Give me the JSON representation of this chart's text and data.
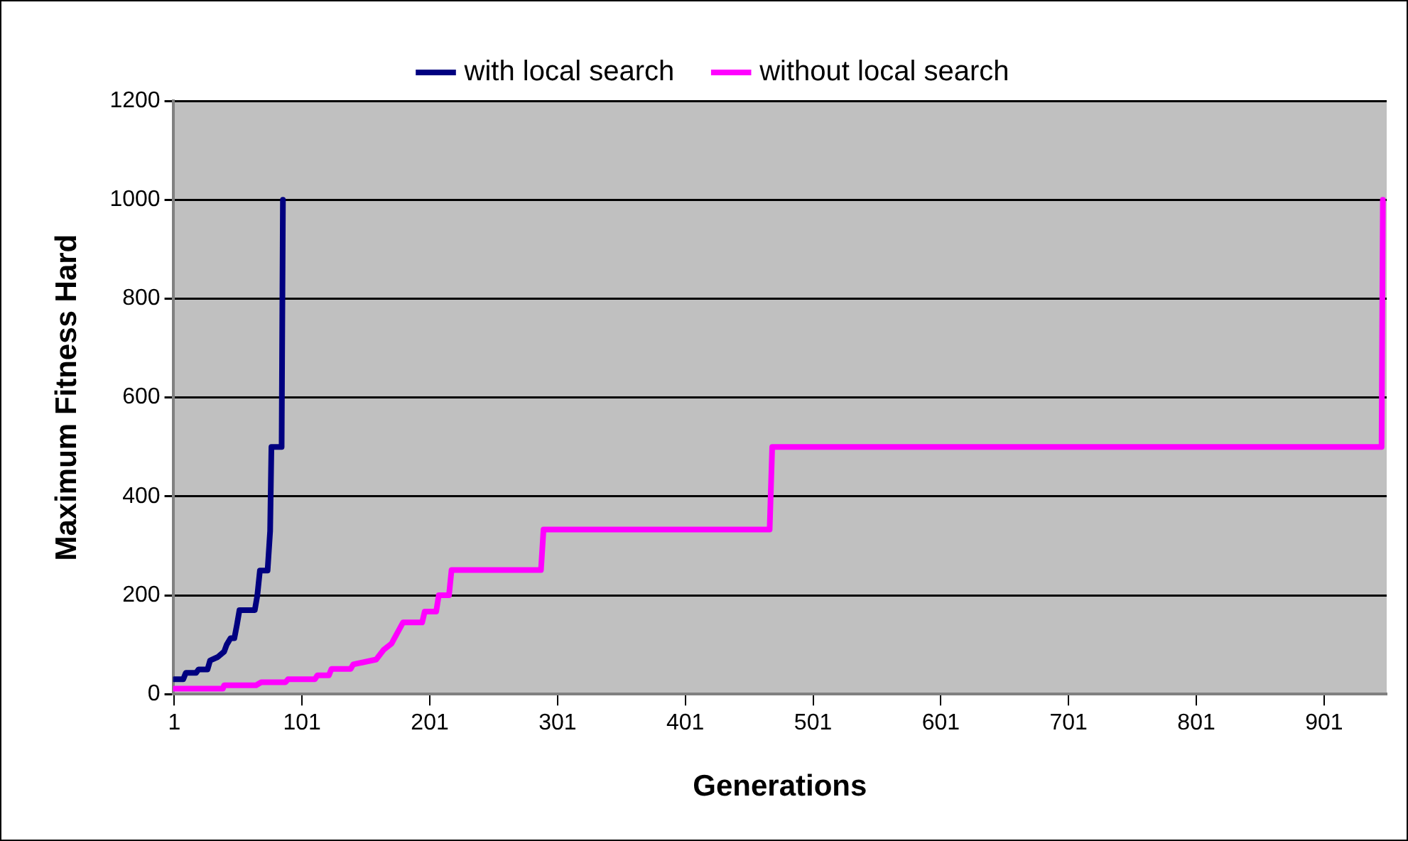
{
  "chart_data": {
    "type": "line",
    "xlabel": "Generations",
    "ylabel": "Maximum Fitness Hard",
    "xlim": [
      0,
      950
    ],
    "xticks": [
      1,
      101,
      201,
      301,
      401,
      501,
      601,
      701,
      801,
      901
    ],
    "ylim": [
      0,
      1200
    ],
    "yticks": [
      0,
      200,
      400,
      600,
      800,
      1000,
      1200
    ],
    "grid": "y",
    "legend": "top",
    "marker": "none",
    "line_style": "solid",
    "series": [
      {
        "name": "with local search",
        "color": "#000080",
        "x": [
          1,
          8,
          10,
          18,
          20,
          27,
          29,
          35,
          40,
          42,
          45,
          48,
          50,
          52,
          64,
          66,
          68,
          74,
          76,
          77,
          85,
          86
        ],
        "values": [
          30,
          30,
          43,
          43,
          50,
          50,
          68,
          75,
          86,
          100,
          113,
          113,
          140,
          170,
          170,
          200,
          250,
          250,
          330,
          500,
          500,
          1000
        ]
      },
      {
        "name": "without local search",
        "color": "#ff00ff",
        "x": [
          1,
          39,
          40,
          65,
          69,
          88,
          90,
          111,
          113,
          122,
          124,
          139,
          141,
          159,
          165,
          171,
          180,
          195,
          197,
          206,
          208,
          216,
          218,
          288,
          290,
          467,
          469,
          946,
          947
        ],
        "values": [
          11,
          11,
          18,
          18,
          24,
          24,
          30,
          30,
          38,
          38,
          51,
          51,
          60,
          70,
          90,
          102,
          145,
          145,
          167,
          167,
          200,
          200,
          251,
          251,
          333,
          333,
          500,
          500,
          1000
        ]
      }
    ]
  }
}
